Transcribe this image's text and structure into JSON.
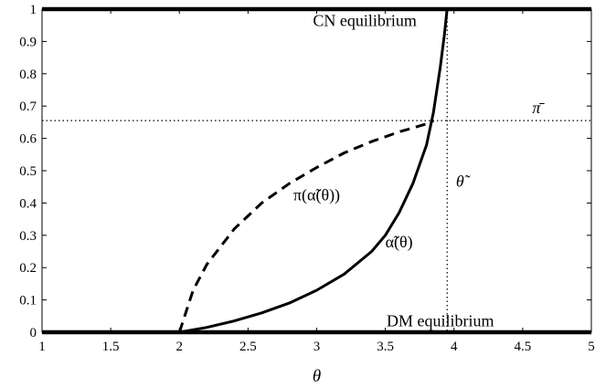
{
  "chart_data": {
    "type": "line",
    "title": "",
    "xlabel": "θ",
    "ylabel": "",
    "xlim": [
      1,
      5
    ],
    "ylim": [
      0,
      1
    ],
    "x_ticks": [
      "1",
      "1.5",
      "2",
      "2.5",
      "3",
      "3.5",
      "4",
      "4.5",
      "5"
    ],
    "y_ticks": [
      "0",
      "0.1",
      "0.2",
      "0.3",
      "0.4",
      "0.5",
      "0.6",
      "0.7",
      "0.8",
      "0.9",
      "1"
    ],
    "grid": false,
    "series": [
      {
        "name": "",
        "style": "solid-thick",
        "x": [
          1,
          2,
          5
        ],
        "y": [
          1,
          1,
          1
        ]
      },
      {
        "name": "",
        "style": "solid-thick",
        "x": [
          1,
          2,
          5
        ],
        "y": [
          0,
          0,
          0
        ]
      },
      {
        "name": "α̃(θ)",
        "style": "solid",
        "x": [
          2.0,
          2.2,
          2.4,
          2.6,
          2.8,
          3.0,
          3.2,
          3.4,
          3.5,
          3.6,
          3.7,
          3.8,
          3.85,
          3.9,
          3.93,
          3.95
        ],
        "y": [
          0.0,
          0.015,
          0.035,
          0.06,
          0.09,
          0.13,
          0.18,
          0.25,
          0.3,
          0.37,
          0.46,
          0.58,
          0.68,
          0.82,
          0.92,
          1.0
        ]
      },
      {
        "name": "π(α̃(θ))",
        "style": "dashed",
        "x": [
          2.0,
          2.1,
          2.2,
          2.4,
          2.6,
          2.8,
          3.0,
          3.2,
          3.4,
          3.6,
          3.8,
          3.85
        ],
        "y": [
          0.0,
          0.13,
          0.21,
          0.32,
          0.4,
          0.46,
          0.51,
          0.555,
          0.59,
          0.62,
          0.645,
          0.655
        ]
      }
    ],
    "reference_lines": [
      {
        "orientation": "horizontal",
        "value": 0.655,
        "label": "π̄"
      },
      {
        "orientation": "vertical",
        "value": 3.95,
        "label": "θ̃"
      }
    ],
    "annotations": [
      {
        "text": "CN equilibrium",
        "x": 3.35,
        "y": 0.965
      },
      {
        "text": "DM equilibrium",
        "x": 3.9,
        "y": 0.035
      },
      {
        "text": "π(α̃(θ))",
        "x": 3.0,
        "y": 0.425
      },
      {
        "text": "α̃(θ)",
        "x": 3.6,
        "y": 0.28
      }
    ]
  }
}
